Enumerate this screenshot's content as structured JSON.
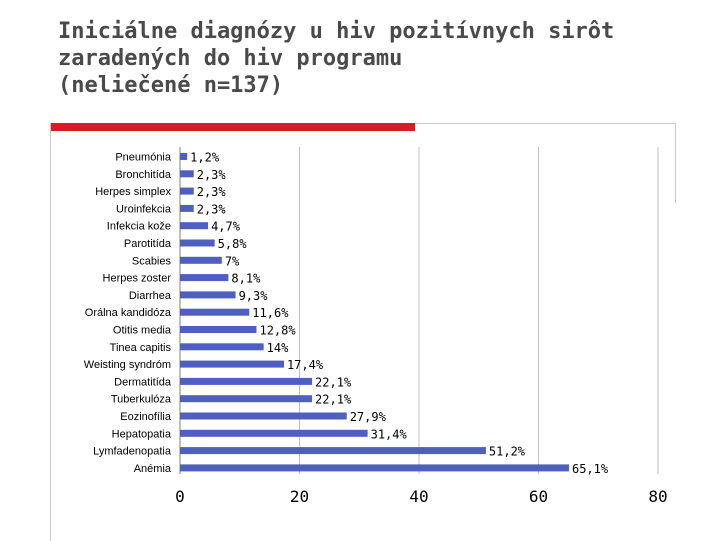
{
  "slide": {
    "title": "Iniciálne diagnózy u hiv pozitívnych sirôt\nzaradených do hiv programu\n(neliečené n=137)"
  },
  "colors": {
    "bar": "#4f5fbf",
    "accent_rule": "#d91c24",
    "grid": "#c0c0c0"
  },
  "chart_data": {
    "type": "bar",
    "orientation": "horizontal",
    "title": "Iniciálne diagnózy u hiv pozitívnych sirôt zaradených do hiv programu (neliečené n=137)",
    "xlabel": "",
    "ylabel": "",
    "xlim": [
      0,
      80
    ],
    "x_ticks": [
      "0",
      "20",
      "40",
      "60",
      "80"
    ],
    "grid": true,
    "legend": "none",
    "categories": [
      "Pneumónia",
      "Bronchitída",
      "Herpes simplex",
      "Uroinfekcia",
      "Infekcia kože",
      "Parotitída",
      "Scabies",
      "Herpes zoster",
      "Diarrhea",
      "Orálna kandidóza",
      "Otitis media",
      "Tinea capitis",
      "Weisting syndróm",
      "Dermatitída",
      "Tuberkulóza",
      "Eozinofília",
      "Hepatopatia",
      "Lymfadenopatia",
      "Anémia"
    ],
    "values": [
      1.2,
      2.3,
      2.3,
      2.3,
      4.7,
      5.8,
      7,
      8.1,
      9.3,
      11.6,
      12.8,
      14,
      17.4,
      22.1,
      22.1,
      27.9,
      31.4,
      51.2,
      65.1
    ],
    "value_labels": [
      "1,2%",
      "2,3%",
      "2,3%",
      "2,3%",
      "4,7%",
      "5,8%",
      "7%",
      "8,1%",
      "9,3%",
      "11,6%",
      "12,8%",
      "14%",
      "17,4%",
      "22,1%",
      "22,1%",
      "27,9%",
      "31,4%",
      "51,2%",
      "65,1%"
    ]
  }
}
